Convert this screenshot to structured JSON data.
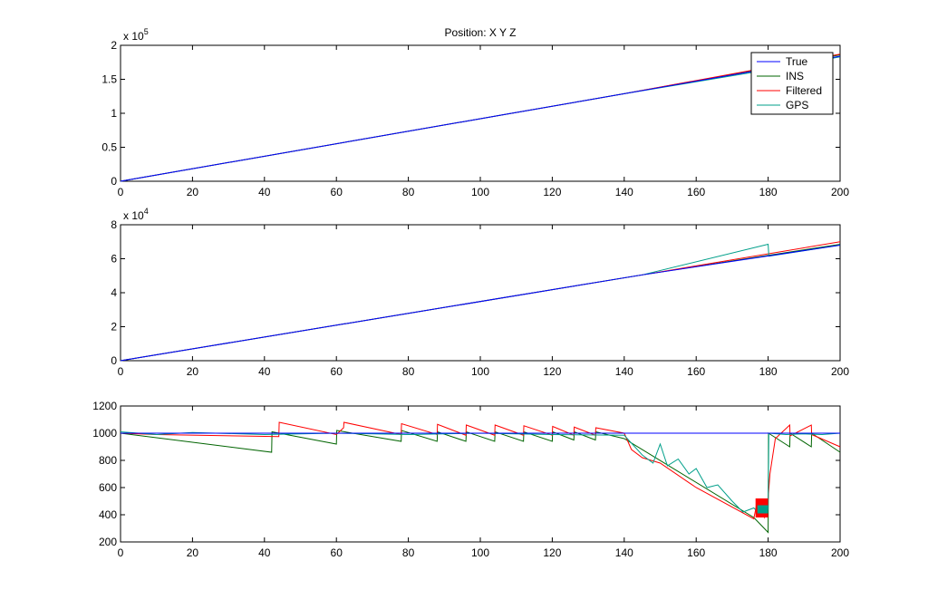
{
  "figure": {
    "title": "Position: X Y Z"
  },
  "legend": {
    "entries": [
      {
        "label": "True",
        "color": "#0000ff"
      },
      {
        "label": "INS",
        "color": "#006400"
      },
      {
        "label": "Filtered",
        "color": "#ff0000"
      },
      {
        "label": "GPS",
        "color": "#009f8a"
      }
    ],
    "placement": "top-right (top subplot)"
  },
  "chart_data": [
    {
      "type": "line",
      "title": "Position: X Y Z",
      "xlabel": "",
      "ylabel": "",
      "xlim": [
        0,
        200
      ],
      "ylim": [
        0,
        200000
      ],
      "exponent_label": "x 10^5",
      "xticks": [
        "0",
        "20",
        "40",
        "60",
        "80",
        "100",
        "120",
        "140",
        "160",
        "180",
        "200"
      ],
      "yticks": [
        "0",
        "0.5",
        "1",
        "1.5",
        "2"
      ],
      "grid": false,
      "series": [
        {
          "name": "True",
          "color": "#0000ff",
          "x": [
            0,
            200
          ],
          "y": [
            0,
            184000
          ]
        },
        {
          "name": "INS",
          "color": "#006400",
          "x": [
            0,
            140,
            200
          ],
          "y": [
            0,
            128800,
            186000
          ]
        },
        {
          "name": "Filtered",
          "color": "#ff0000",
          "x": [
            0,
            140,
            200
          ],
          "y": [
            0,
            128800,
            187000
          ]
        },
        {
          "name": "GPS",
          "color": "#009f8a",
          "x": [
            0,
            140,
            180,
            200
          ],
          "y": [
            0,
            128800,
            164000,
            183000
          ]
        }
      ]
    },
    {
      "type": "line",
      "xlim": [
        0,
        200
      ],
      "ylim": [
        0,
        80000
      ],
      "exponent_label": "x 10^4",
      "xticks": [
        "0",
        "20",
        "40",
        "60",
        "80",
        "100",
        "120",
        "140",
        "160",
        "180",
        "200"
      ],
      "yticks": [
        "0",
        "2",
        "4",
        "6",
        "8"
      ],
      "grid": false,
      "series": [
        {
          "name": "True",
          "color": "#0000ff",
          "x": [
            0,
            145,
            200
          ],
          "y": [
            0,
            50500,
            68000
          ]
        },
        {
          "name": "INS",
          "color": "#006400",
          "x": [
            0,
            145,
            200
          ],
          "y": [
            0,
            50500,
            68500
          ]
        },
        {
          "name": "Filtered",
          "color": "#ff0000",
          "x": [
            0,
            145,
            200
          ],
          "y": [
            0,
            50500,
            70000
          ]
        },
        {
          "name": "GPS",
          "color": "#009f8a",
          "x": [
            0,
            145,
            180,
            180.2,
            200
          ],
          "y": [
            0,
            50500,
            68500,
            61500,
            68000
          ]
        }
      ]
    },
    {
      "type": "line",
      "xlim": [
        0,
        200
      ],
      "ylim": [
        200,
        1200
      ],
      "xticks": [
        "0",
        "20",
        "40",
        "60",
        "80",
        "100",
        "120",
        "140",
        "160",
        "180",
        "200"
      ],
      "yticks": [
        "200",
        "400",
        "600",
        "800",
        "1000",
        "1200"
      ],
      "grid": false,
      "series": [
        {
          "name": "True",
          "color": "#0000ff",
          "x": [
            0,
            200
          ],
          "y": [
            1000,
            1000
          ]
        },
        {
          "name": "INS",
          "color": "#006400",
          "x": [
            0,
            42,
            42.1,
            60,
            60.1,
            78,
            78.1,
            88,
            88.1,
            96,
            96.1,
            104,
            104.1,
            112,
            112.1,
            120,
            120.1,
            126,
            126.1,
            132,
            132.1,
            140,
            176,
            180,
            180.1,
            186,
            186.1,
            192,
            192.1,
            200
          ],
          "y": [
            1000,
            860,
            1010,
            920,
            1020,
            940,
            1020,
            940,
            1010,
            940,
            1010,
            940,
            1010,
            940,
            1010,
            940,
            1010,
            950,
            1010,
            950,
            1010,
            960,
            380,
            270,
            1000,
            900,
            1000,
            900,
            1000,
            860
          ]
        },
        {
          "name": "Filtered",
          "color": "#ff0000",
          "x": [
            0,
            10,
            44,
            44.1,
            60,
            62,
            62.1,
            78,
            78.1,
            88,
            88.1,
            96,
            96.1,
            104,
            104.1,
            112,
            112.1,
            120,
            120.1,
            126,
            126.1,
            132,
            132.1,
            140,
            142,
            145,
            150,
            160,
            176,
            177,
            179,
            180,
            180.5,
            182,
            186,
            186.1,
            192,
            192.1,
            200
          ],
          "y": [
            1000,
            990,
            975,
            1080,
            990,
            1040,
            1080,
            990,
            1070,
            990,
            1065,
            985,
            1060,
            985,
            1060,
            985,
            1055,
            985,
            1050,
            985,
            1045,
            985,
            1040,
            1000,
            880,
            820,
            780,
            600,
            370,
            500,
            380,
            520,
            700,
            960,
            1060,
            980,
            1060,
            990,
            900
          ]
        },
        {
          "name": "GPS",
          "color": "#009f8a",
          "x": [
            0,
            10,
            20,
            40,
            60,
            80,
            100,
            120,
            140,
            145,
            148,
            150,
            152,
            155,
            158,
            160,
            163,
            166,
            170,
            173,
            176,
            178,
            180,
            180.2,
            185,
            190,
            195,
            200
          ],
          "y": [
            1010,
            990,
            1005,
            990,
            1000,
            990,
            1000,
            990,
            985,
            840,
            780,
            920,
            760,
            810,
            700,
            740,
            600,
            620,
            500,
            420,
            450,
            400,
            440,
            1000,
            990,
            995,
            990,
            1000
          ]
        }
      ]
    }
  ]
}
